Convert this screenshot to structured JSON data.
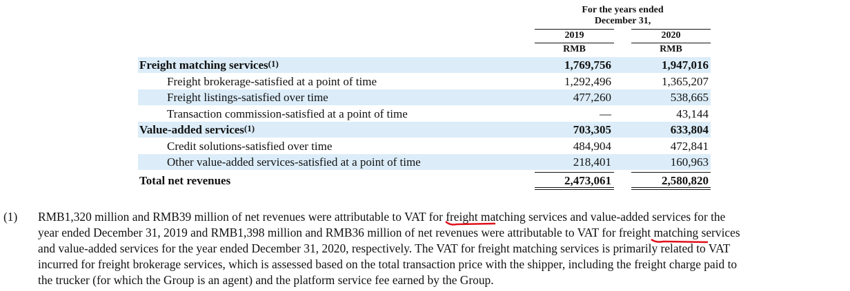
{
  "header": {
    "period": [
      "For the years ended",
      "December 31,"
    ],
    "years": [
      "2019",
      "2020"
    ],
    "units": [
      "RMB",
      "RMB"
    ]
  },
  "table": {
    "sections": [
      {
        "label": "Freight matching services",
        "note": "(1)",
        "values": [
          "1,769,756",
          "1,947,016"
        ],
        "items": [
          {
            "label": "Freight brokerage-satisfied at a point of time",
            "values": [
              "1,292,496",
              "1,365,207"
            ]
          },
          {
            "label": "Freight listings-satisfied over time",
            "values": [
              "477,260",
              "538,665"
            ]
          },
          {
            "label": "Transaction commission-satisfied at a point of time",
            "values": [
              "—",
              "43,144"
            ]
          }
        ]
      },
      {
        "label": "Value-added services",
        "note": "(1)",
        "values": [
          "703,305",
          "633,804"
        ],
        "items": [
          {
            "label": "Credit solutions-satisfied over time",
            "values": [
              "484,904",
              "472,841"
            ]
          },
          {
            "label": "Other value-added services-satisfied at a point of time",
            "values": [
              "218,401",
              "160,963"
            ]
          }
        ]
      }
    ],
    "total": {
      "label": "Total net revenues",
      "values": [
        "2,473,061",
        "2,580,820"
      ]
    }
  },
  "footnote": {
    "marker": "(1)",
    "lines": [
      "RMB1,320 million and RMB39 million of net revenues were attributable to VAT for freight matching services and value-added services for the",
      "year ended December 31, 2019 and RMB1,398 million and RMB36 million of net revenues were attributable to VAT for freight matching services",
      "and value-added services for the year ended December 31, 2020, respectively. The VAT for freight matching services is primarily related to VAT",
      "incurred for freight brokerage services, which is assessed based on the total transaction price with the shipper, including the freight charge paid to",
      "the trucker (for which the Group is an agent) and the platform service fee earned by the Group."
    ]
  }
}
